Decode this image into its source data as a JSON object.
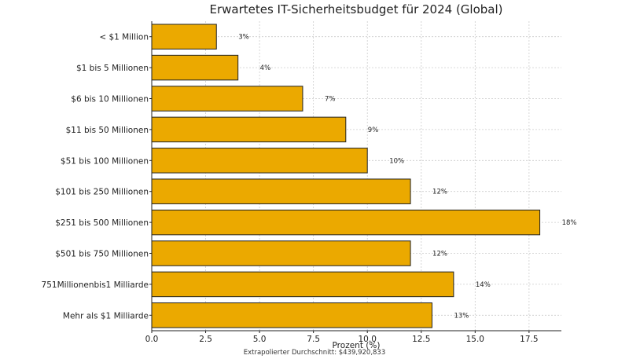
{
  "chart_data": {
    "type": "bar",
    "orientation": "horizontal",
    "title": "Erwartetes IT-Sicherheitsbudget für 2024 (Global)",
    "xlabel": "Prozent (%)",
    "ylabel": "",
    "xlim": [
      0,
      19
    ],
    "xticks": [
      0,
      2.5,
      5,
      7.5,
      10,
      12.5,
      15,
      17.5
    ],
    "xtick_labels": [
      "0.0",
      "2.5",
      "5.0",
      "7.5",
      "10.0",
      "12.5",
      "15.0",
      "17.5"
    ],
    "grid": true,
    "bar_color": "#EBA900",
    "categories": [
      "< $1 Million",
      "$1 bis 5 Millionen",
      "$6 bis 10 Millionen",
      "$11 bis 50 Millionen",
      "$51 bis 100 Millionen",
      "$101 bis 250 Millionen",
      "$251 bis 500 Millionen",
      "$501 bis 750 Millionen",
      "751Millionenbis1 Milliarde",
      "Mehr als $1 Milliarde"
    ],
    "values": [
      3,
      4,
      7,
      9,
      10,
      12,
      18,
      12,
      14,
      13
    ],
    "data_labels": [
      "3%",
      "4%",
      "7%",
      "9%",
      "10%",
      "12%",
      "18%",
      "12%",
      "14%",
      "13%"
    ],
    "footnote": "Extrapolierter Durchschnitt: $439,920,833"
  }
}
